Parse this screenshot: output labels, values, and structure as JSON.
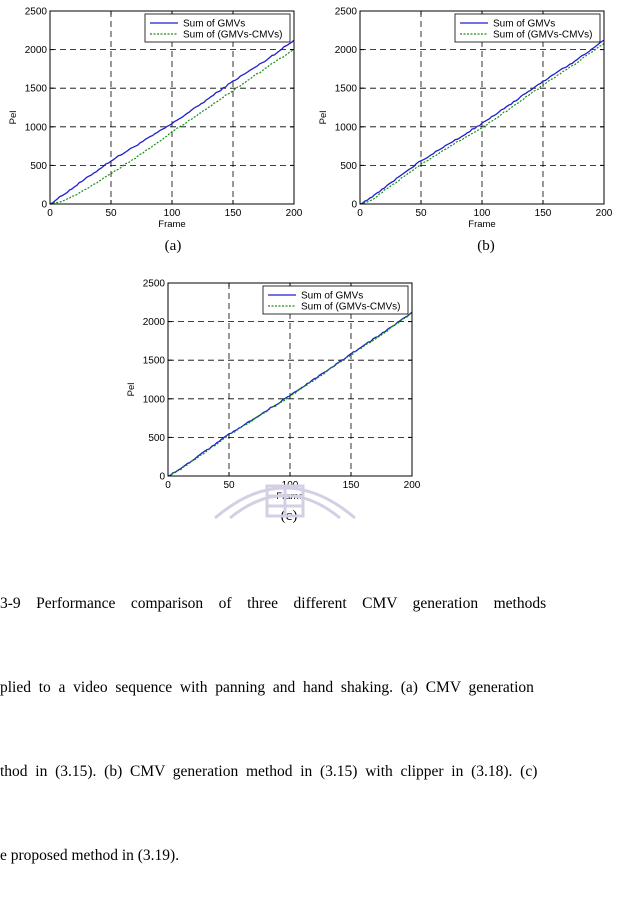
{
  "colors": {
    "gmv": "#1f1fcf",
    "diff": "#1a8c1a",
    "grid": "#000000",
    "watermark": "#d4cfe3"
  },
  "legend": {
    "gmv": "Sum of GMVs",
    "diff": "Sum of (GMVs-CMVs)"
  },
  "subfigure_labels": [
    "(a)",
    "(b)",
    "(c)"
  ],
  "caption": [
    "3-9    Performance    comparison    of    three    different    CMV    generation    methods",
    "plied  to  a  video  sequence  with  panning  and  hand  shaking.  (a)  CMV  generation",
    "thod  in  (3.15).  (b)  CMV  generation  method  in  (3.15)  with  clipper  in  (3.18).  (c)",
    "e proposed method in (3.19)."
  ],
  "chart_data": [
    {
      "type": "line",
      "xlabel": "Frame",
      "ylabel": "Pel",
      "xlim": [
        0,
        200
      ],
      "ylim": [
        0,
        2500
      ],
      "xticks": [
        0,
        50,
        100,
        150,
        200
      ],
      "yticks": [
        0,
        500,
        1000,
        1500,
        2000,
        2500
      ],
      "grid": true,
      "legend_position": "top-right",
      "series": [
        {
          "name": "Sum of GMVs",
          "x": [
            0,
            10,
            25,
            50,
            75,
            100,
            125,
            150,
            175,
            200
          ],
          "y": [
            0,
            110,
            280,
            560,
            800,
            1040,
            1310,
            1590,
            1840,
            2120
          ]
        },
        {
          "name": "Sum of (GMVs-CMVs)",
          "x": [
            0,
            10,
            25,
            50,
            75,
            100,
            125,
            150,
            175,
            200
          ],
          "y": [
            0,
            40,
            150,
            390,
            650,
            930,
            1200,
            1470,
            1740,
            2000
          ]
        }
      ]
    },
    {
      "type": "line",
      "xlabel": "Frame",
      "ylabel": "Pel",
      "xlim": [
        0,
        200
      ],
      "ylim": [
        0,
        2500
      ],
      "xticks": [
        0,
        50,
        100,
        150,
        200
      ],
      "yticks": [
        0,
        500,
        1000,
        1500,
        2000,
        2500
      ],
      "grid": true,
      "legend_position": "top-right",
      "series": [
        {
          "name": "Sum of GMVs",
          "x": [
            0,
            10,
            25,
            50,
            75,
            100,
            125,
            150,
            175,
            200
          ],
          "y": [
            0,
            90,
            270,
            560,
            800,
            1040,
            1310,
            1590,
            1840,
            2120
          ]
        },
        {
          "name": "Sum of (GMVs-CMVs)",
          "x": [
            0,
            10,
            25,
            50,
            75,
            100,
            125,
            150,
            175,
            200
          ],
          "y": [
            0,
            60,
            230,
            510,
            760,
            990,
            1260,
            1540,
            1800,
            2080
          ]
        }
      ]
    },
    {
      "type": "line",
      "xlabel": "Frame",
      "ylabel": "Pel",
      "xlim": [
        0,
        200
      ],
      "ylim": [
        0,
        2500
      ],
      "xticks": [
        0,
        50,
        100,
        150,
        200
      ],
      "yticks": [
        0,
        500,
        1000,
        1500,
        2000,
        2500
      ],
      "grid": true,
      "legend_position": "top-right",
      "series": [
        {
          "name": "Sum of GMVs",
          "x": [
            0,
            10,
            25,
            50,
            75,
            100,
            125,
            150,
            175,
            200
          ],
          "y": [
            0,
            90,
            260,
            540,
            790,
            1040,
            1310,
            1580,
            1840,
            2120
          ]
        },
        {
          "name": "Sum of (GMVs-CMVs)",
          "x": [
            0,
            10,
            25,
            50,
            75,
            100,
            125,
            150,
            175,
            200
          ],
          "y": [
            0,
            80,
            250,
            530,
            780,
            1030,
            1300,
            1570,
            1830,
            2110
          ]
        }
      ]
    }
  ]
}
